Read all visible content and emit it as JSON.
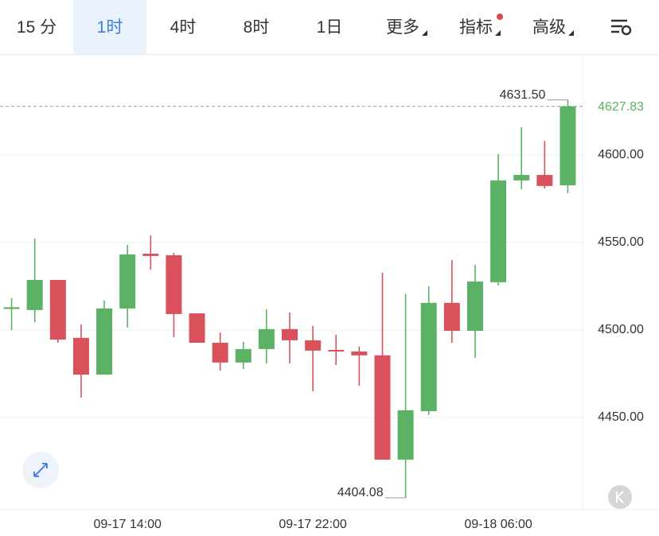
{
  "toolbar": {
    "tabs": [
      "15 分",
      "1时",
      "4时",
      "8时",
      "1日",
      "更多",
      "指标",
      "高级"
    ],
    "selected_tab": 1
  },
  "chart_data": {
    "type": "candlestick",
    "categories": [
      null,
      null,
      null,
      null,
      null,
      "09-17 14:00",
      null,
      null,
      null,
      null,
      null,
      null,
      null,
      "09-17 22:00",
      null,
      null,
      null,
      null,
      null,
      null,
      null,
      "09-18 06:00",
      null,
      null,
      null
    ],
    "open": [
      4512,
      4511.4,
      4528.6,
      4495.5,
      4474.5,
      4512.3,
      4543.6,
      4542.7,
      4509.5,
      4492.7,
      4481.4,
      4489.1,
      4500.5,
      4494.1,
      4488.6,
      4487.7,
      4485.5,
      4425.9,
      4453.6,
      4515.5,
      4499.5,
      4527.3,
      4585.5,
      4588.6,
      4582.7
    ],
    "high": [
      4518.2,
      4552.3,
      4528.6,
      4503.2,
      4516.8,
      4548.6,
      4554.1,
      4544.1,
      4509.5,
      4498.6,
      4493.2,
      4511.8,
      4510,
      4502.3,
      4497.3,
      4490.5,
      4532.7,
      4520.5,
      4525,
      4540,
      4537.3,
      4600.5,
      4615.9,
      4608,
      4631.5
    ],
    "low": [
      4500,
      4504.5,
      4492.7,
      4461.4,
      4474.5,
      4501.4,
      4534.5,
      4495.9,
      4492.7,
      4476.8,
      4477.7,
      4480.9,
      4480.9,
      4465,
      4480,
      4468.2,
      4425.9,
      4404.08,
      4451.4,
      4492.7,
      4484.1,
      4525.5,
      4580.5,
      4580.9,
      4578.2
    ],
    "close": [
      4513,
      4528.6,
      4494.5,
      4474.5,
      4512.3,
      4543.2,
      4542.3,
      4509.1,
      4492.7,
      4481.4,
      4489.1,
      4500.5,
      4494.1,
      4488.2,
      4487.7,
      4485.5,
      4425.9,
      4454.1,
      4515.5,
      4499.5,
      4527.7,
      4585.5,
      4588.6,
      4582.3,
      4627.83
    ],
    "up_color": "#5cb264",
    "down_color": "#d9525b",
    "ylim": [
      4397.7,
      4657.7
    ],
    "yticks": [
      {
        "value": 4450,
        "label": "4450.00"
      },
      {
        "value": 4500,
        "label": "4500.00"
      },
      {
        "value": 4550,
        "label": "4550.00"
      },
      {
        "value": 4600,
        "label": "4600.00"
      }
    ],
    "grid": true,
    "last_price": {
      "value": 4627.83,
      "label": "4627.83"
    },
    "annotations": [
      {
        "value": 4631.5,
        "label": "4631.50"
      },
      {
        "value": 4404.08,
        "label": "4404.08"
      }
    ]
  }
}
